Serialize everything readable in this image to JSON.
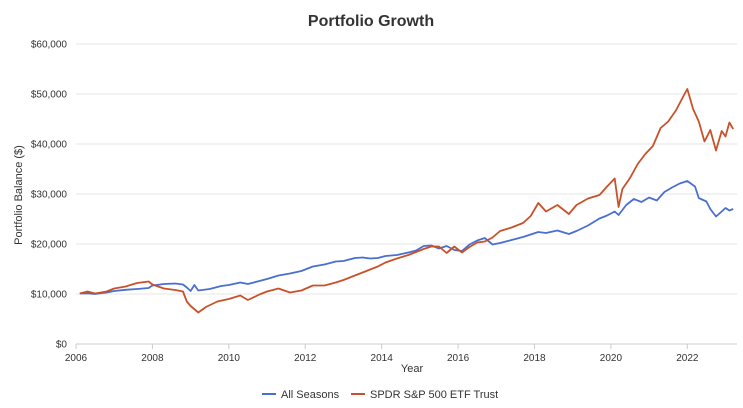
{
  "chart_data": {
    "type": "line",
    "title": "Portfolio Growth",
    "xlabel": "Year",
    "ylabel": "Portfolio Balance ($)",
    "xlim": [
      2006,
      2023.3
    ],
    "ylim": [
      0,
      60000
    ],
    "x_ticks": [
      2006,
      2008,
      2010,
      2012,
      2014,
      2016,
      2018,
      2020,
      2022
    ],
    "x_tick_labels": [
      "2006",
      "2008",
      "2010",
      "2012",
      "2014",
      "2016",
      "2018",
      "2020",
      "2022"
    ],
    "y_ticks": [
      0,
      10000,
      20000,
      30000,
      40000,
      50000,
      60000
    ],
    "y_tick_labels": [
      "$0",
      "$10,000",
      "$20,000",
      "$30,000",
      "$40,000",
      "$50,000",
      "$60,000"
    ],
    "grid": true,
    "legend_position": "bottom",
    "series": [
      {
        "name": "All Seasons",
        "color": "#4a6fd1",
        "points": [
          [
            2006.1,
            10100
          ],
          [
            2006.3,
            10150
          ],
          [
            2006.5,
            10000
          ],
          [
            2006.8,
            10300
          ],
          [
            2007.0,
            10600
          ],
          [
            2007.3,
            10850
          ],
          [
            2007.6,
            11000
          ],
          [
            2007.9,
            11200
          ],
          [
            2008.0,
            11700
          ],
          [
            2008.3,
            12000
          ],
          [
            2008.6,
            12100
          ],
          [
            2008.8,
            11900
          ],
          [
            2008.9,
            11300
          ],
          [
            2009.0,
            10600
          ],
          [
            2009.1,
            11800
          ],
          [
            2009.2,
            10700
          ],
          [
            2009.5,
            11000
          ],
          [
            2009.8,
            11600
          ],
          [
            2010.0,
            11800
          ],
          [
            2010.3,
            12300
          ],
          [
            2010.5,
            12000
          ],
          [
            2010.8,
            12600
          ],
          [
            2011.0,
            13000
          ],
          [
            2011.3,
            13700
          ],
          [
            2011.6,
            14100
          ],
          [
            2011.9,
            14600
          ],
          [
            2012.2,
            15500
          ],
          [
            2012.5,
            15900
          ],
          [
            2012.8,
            16500
          ],
          [
            2013.0,
            16600
          ],
          [
            2013.3,
            17200
          ],
          [
            2013.5,
            17300
          ],
          [
            2013.7,
            17100
          ],
          [
            2013.9,
            17200
          ],
          [
            2014.1,
            17600
          ],
          [
            2014.4,
            17800
          ],
          [
            2014.7,
            18300
          ],
          [
            2014.9,
            18700
          ],
          [
            2015.1,
            19600
          ],
          [
            2015.3,
            19700
          ],
          [
            2015.5,
            19100
          ],
          [
            2015.7,
            19600
          ],
          [
            2015.9,
            18800
          ],
          [
            2016.1,
            18600
          ],
          [
            2016.3,
            19900
          ],
          [
            2016.5,
            20700
          ],
          [
            2016.7,
            21200
          ],
          [
            2016.9,
            19900
          ],
          [
            2017.1,
            20200
          ],
          [
            2017.4,
            20800
          ],
          [
            2017.7,
            21400
          ],
          [
            2017.9,
            21900
          ],
          [
            2018.1,
            22400
          ],
          [
            2018.3,
            22200
          ],
          [
            2018.6,
            22700
          ],
          [
            2018.9,
            22000
          ],
          [
            2019.1,
            22600
          ],
          [
            2019.4,
            23700
          ],
          [
            2019.7,
            25100
          ],
          [
            2019.9,
            25700
          ],
          [
            2020.1,
            26500
          ],
          [
            2020.2,
            25800
          ],
          [
            2020.4,
            27800
          ],
          [
            2020.6,
            29000
          ],
          [
            2020.8,
            28400
          ],
          [
            2021.0,
            29300
          ],
          [
            2021.2,
            28700
          ],
          [
            2021.4,
            30400
          ],
          [
            2021.6,
            31300
          ],
          [
            2021.8,
            32100
          ],
          [
            2022.0,
            32600
          ],
          [
            2022.2,
            31500
          ],
          [
            2022.3,
            29200
          ],
          [
            2022.5,
            28500
          ],
          [
            2022.6,
            27000
          ],
          [
            2022.75,
            25500
          ],
          [
            2022.9,
            26500
          ],
          [
            2023.0,
            27200
          ],
          [
            2023.1,
            26700
          ],
          [
            2023.2,
            27000
          ]
        ]
      },
      {
        "name": "SPDR S&P 500 ETF Trust",
        "color": "#c9512a",
        "points": [
          [
            2006.1,
            10100
          ],
          [
            2006.3,
            10500
          ],
          [
            2006.5,
            10100
          ],
          [
            2006.8,
            10500
          ],
          [
            2007.0,
            11100
          ],
          [
            2007.3,
            11500
          ],
          [
            2007.6,
            12200
          ],
          [
            2007.9,
            12500
          ],
          [
            2008.0,
            11900
          ],
          [
            2008.3,
            11100
          ],
          [
            2008.6,
            10800
          ],
          [
            2008.8,
            10500
          ],
          [
            2008.9,
            8500
          ],
          [
            2009.0,
            7600
          ],
          [
            2009.2,
            6300
          ],
          [
            2009.4,
            7400
          ],
          [
            2009.7,
            8500
          ],
          [
            2010.0,
            9000
          ],
          [
            2010.3,
            9700
          ],
          [
            2010.5,
            8800
          ],
          [
            2010.8,
            9900
          ],
          [
            2011.0,
            10500
          ],
          [
            2011.3,
            11100
          ],
          [
            2011.6,
            10300
          ],
          [
            2011.9,
            10700
          ],
          [
            2012.2,
            11700
          ],
          [
            2012.5,
            11700
          ],
          [
            2012.8,
            12300
          ],
          [
            2013.0,
            12800
          ],
          [
            2013.3,
            13700
          ],
          [
            2013.6,
            14600
          ],
          [
            2013.9,
            15500
          ],
          [
            2014.1,
            16300
          ],
          [
            2014.4,
            17100
          ],
          [
            2014.7,
            17800
          ],
          [
            2014.9,
            18400
          ],
          [
            2015.1,
            19000
          ],
          [
            2015.3,
            19500
          ],
          [
            2015.5,
            19500
          ],
          [
            2015.7,
            18200
          ],
          [
            2015.9,
            19500
          ],
          [
            2016.1,
            18300
          ],
          [
            2016.3,
            19400
          ],
          [
            2016.5,
            20300
          ],
          [
            2016.7,
            20500
          ],
          [
            2016.9,
            21300
          ],
          [
            2017.1,
            22600
          ],
          [
            2017.4,
            23300
          ],
          [
            2017.7,
            24200
          ],
          [
            2017.9,
            25600
          ],
          [
            2018.1,
            28200
          ],
          [
            2018.3,
            26500
          ],
          [
            2018.6,
            27800
          ],
          [
            2018.9,
            26000
          ],
          [
            2019.1,
            27800
          ],
          [
            2019.4,
            29100
          ],
          [
            2019.7,
            29800
          ],
          [
            2019.9,
            31500
          ],
          [
            2020.1,
            33100
          ],
          [
            2020.2,
            27400
          ],
          [
            2020.3,
            31000
          ],
          [
            2020.5,
            33200
          ],
          [
            2020.7,
            36000
          ],
          [
            2020.9,
            38000
          ],
          [
            2021.1,
            39600
          ],
          [
            2021.3,
            43200
          ],
          [
            2021.5,
            44500
          ],
          [
            2021.7,
            46700
          ],
          [
            2021.9,
            49600
          ],
          [
            2022.0,
            51000
          ],
          [
            2022.15,
            47000
          ],
          [
            2022.3,
            44500
          ],
          [
            2022.45,
            40500
          ],
          [
            2022.6,
            42800
          ],
          [
            2022.75,
            38700
          ],
          [
            2022.9,
            42600
          ],
          [
            2023.0,
            41500
          ],
          [
            2023.1,
            44300
          ],
          [
            2023.2,
            43000
          ]
        ]
      }
    ]
  }
}
